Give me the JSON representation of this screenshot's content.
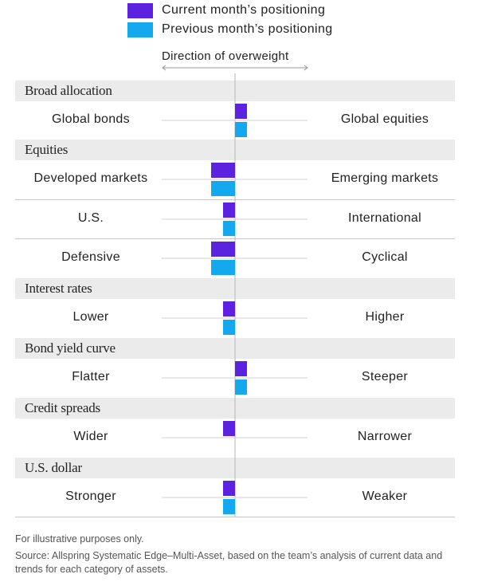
{
  "legend": [
    {
      "label": "Current month’s positioning",
      "color": "#5b22e0"
    },
    {
      "label": "Previous month’s positioning",
      "color": "#14a9ef"
    }
  ],
  "direction_label": "Direction of overweight",
  "chart_data": {
    "type": "bar",
    "orientation": "horizontal-diverging",
    "sections": [
      {
        "title": "Broad allocation",
        "rows": [
          {
            "left": "Global bonds",
            "right": "Global equities",
            "current": 1,
            "previous": 1
          }
        ]
      },
      {
        "title": "Equities",
        "rows": [
          {
            "left": "Developed markets",
            "right": "Emerging markets",
            "current": -2,
            "previous": -2
          },
          {
            "left": "U.S.",
            "right": "International",
            "current": -1,
            "previous": -1
          },
          {
            "left": "Defensive",
            "right": "Cyclical",
            "current": -2,
            "previous": -2
          }
        ]
      },
      {
        "title": "Interest rates",
        "rows": [
          {
            "left": "Lower",
            "right": "Higher",
            "current": -1,
            "previous": -1
          }
        ]
      },
      {
        "title": "Bond yield curve",
        "rows": [
          {
            "left": "Flatter",
            "right": "Steeper",
            "current": 1,
            "previous": 1
          }
        ]
      },
      {
        "title": "Credit spreads",
        "rows": [
          {
            "left": "Wider",
            "right": "Narrower",
            "current": -1,
            "previous": 0
          }
        ]
      },
      {
        "title": "U.S. dollar",
        "rows": [
          {
            "left": "Stronger",
            "right": "Weaker",
            "current": -1,
            "previous": -1
          }
        ]
      }
    ]
  },
  "footnotes": [
    "For illustrative purposes only.",
    "Source: Allspring Systematic Edge–Multi-Asset, based on the team’s analysis of current data and trends for each category of assets."
  ]
}
